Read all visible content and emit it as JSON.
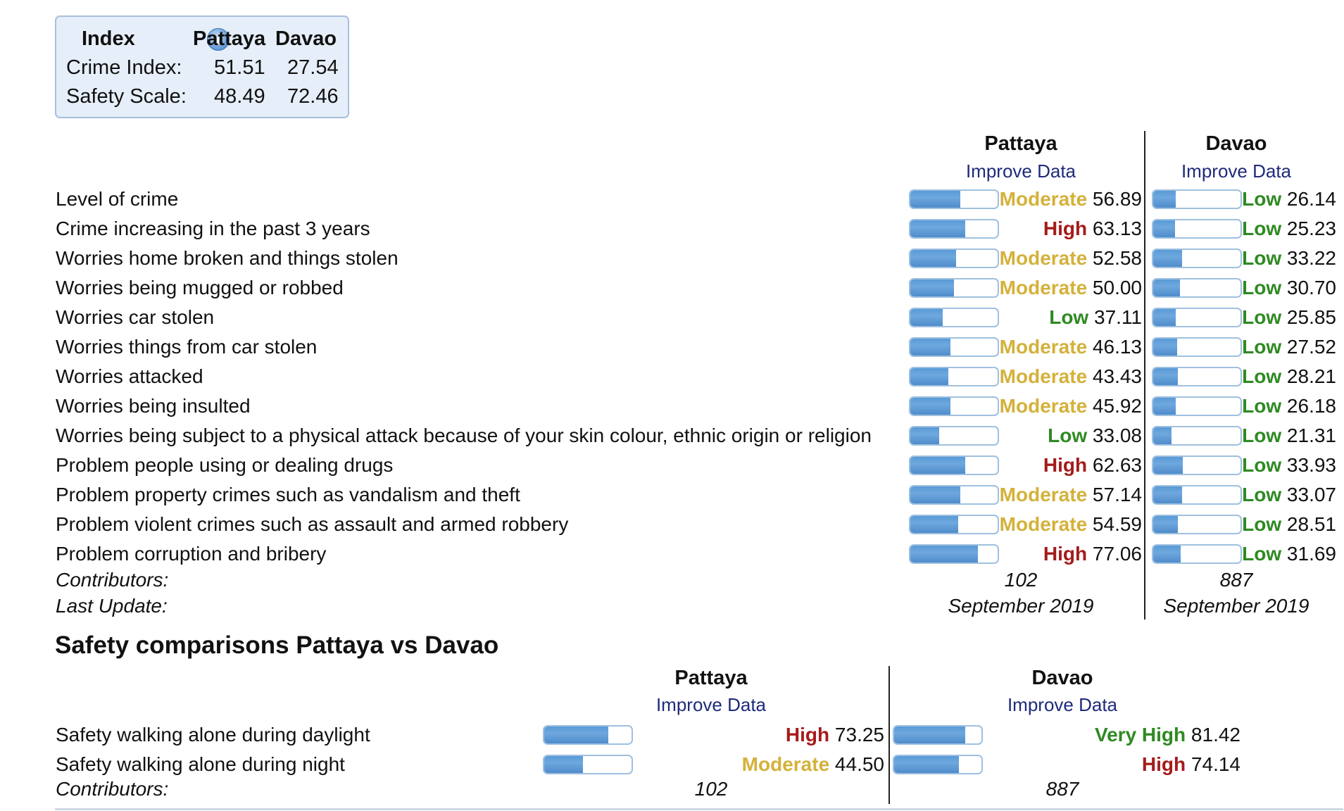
{
  "summary": {
    "header": {
      "index": "Index",
      "city1": "Pattaya",
      "city2": "Davao"
    },
    "rows": [
      {
        "label": "Crime Index:",
        "v1": "51.51",
        "v2": "27.54"
      },
      {
        "label": "Safety Scale:",
        "v1": "48.49",
        "v2": "72.46"
      }
    ],
    "info_icon": "info-icon"
  },
  "crime": {
    "city1": {
      "name": "Pattaya",
      "improve": "Improve Data"
    },
    "city2": {
      "name": "Davao",
      "improve": "Improve Data"
    },
    "rows": [
      {
        "label": "Level of crime",
        "c1": {
          "level": "Moderate",
          "value": "56.89"
        },
        "c2": {
          "level": "Low",
          "value": "26.14"
        }
      },
      {
        "label": "Crime increasing in the past 3 years",
        "c1": {
          "level": "High",
          "value": "63.13"
        },
        "c2": {
          "level": "Low",
          "value": "25.23"
        }
      },
      {
        "label": "Worries home broken and things stolen",
        "c1": {
          "level": "Moderate",
          "value": "52.58"
        },
        "c2": {
          "level": "Low",
          "value": "33.22"
        }
      },
      {
        "label": "Worries being mugged or robbed",
        "c1": {
          "level": "Moderate",
          "value": "50.00"
        },
        "c2": {
          "level": "Low",
          "value": "30.70"
        }
      },
      {
        "label": "Worries car stolen",
        "c1": {
          "level": "Low",
          "value": "37.11"
        },
        "c2": {
          "level": "Low",
          "value": "25.85"
        }
      },
      {
        "label": "Worries things from car stolen",
        "c1": {
          "level": "Moderate",
          "value": "46.13"
        },
        "c2": {
          "level": "Low",
          "value": "27.52"
        }
      },
      {
        "label": "Worries attacked",
        "c1": {
          "level": "Moderate",
          "value": "43.43"
        },
        "c2": {
          "level": "Low",
          "value": "28.21"
        }
      },
      {
        "label": "Worries being insulted",
        "c1": {
          "level": "Moderate",
          "value": "45.92"
        },
        "c2": {
          "level": "Low",
          "value": "26.18"
        }
      },
      {
        "label": "Worries being subject to a physical attack because of your skin colour, ethnic origin or religion",
        "c1": {
          "level": "Low",
          "value": "33.08"
        },
        "c2": {
          "level": "Low",
          "value": "21.31"
        }
      },
      {
        "label": "Problem people using or dealing drugs",
        "c1": {
          "level": "High",
          "value": "62.63"
        },
        "c2": {
          "level": "Low",
          "value": "33.93"
        }
      },
      {
        "label": "Problem property crimes such as vandalism and theft",
        "c1": {
          "level": "Moderate",
          "value": "57.14"
        },
        "c2": {
          "level": "Low",
          "value": "33.07"
        }
      },
      {
        "label": "Problem violent crimes such as assault and armed robbery",
        "c1": {
          "level": "Moderate",
          "value": "54.59"
        },
        "c2": {
          "level": "Low",
          "value": "28.51"
        }
      },
      {
        "label": "Problem corruption and bribery",
        "c1": {
          "level": "High",
          "value": "77.06"
        },
        "c2": {
          "level": "Low",
          "value": "31.69"
        }
      }
    ],
    "contributors": {
      "label": "Contributors:",
      "c1": "102",
      "c2": "887"
    },
    "last_update": {
      "label": "Last Update:",
      "c1": "September 2019",
      "c2": "September 2019"
    }
  },
  "safety": {
    "title": "Safety comparisons Pattaya vs Davao",
    "city1": {
      "name": "Pattaya",
      "improve": "Improve Data"
    },
    "city2": {
      "name": "Davao",
      "improve": "Improve Data"
    },
    "rows": [
      {
        "label": "Safety walking alone during daylight",
        "c1": {
          "level": "High",
          "value": "73.25"
        },
        "c2": {
          "level": "Very High",
          "value": "81.42"
        }
      },
      {
        "label": "Safety walking alone during night",
        "c1": {
          "level": "Moderate",
          "value": "44.50"
        },
        "c2": {
          "level": "High",
          "value": "74.14"
        }
      }
    ],
    "contributors": {
      "label": "Contributors:",
      "c1": "102",
      "c2": "887"
    }
  },
  "colors": {
    "moderate": "#d4b13a",
    "high": "#a51b1b",
    "low": "#2e8a22",
    "very_high": "#2e8a22",
    "link": "#1f2a7a",
    "bar_fill": "#5a9ad6",
    "bar_border": "#9fc0e0",
    "summary_bg": "#e6eef9"
  }
}
